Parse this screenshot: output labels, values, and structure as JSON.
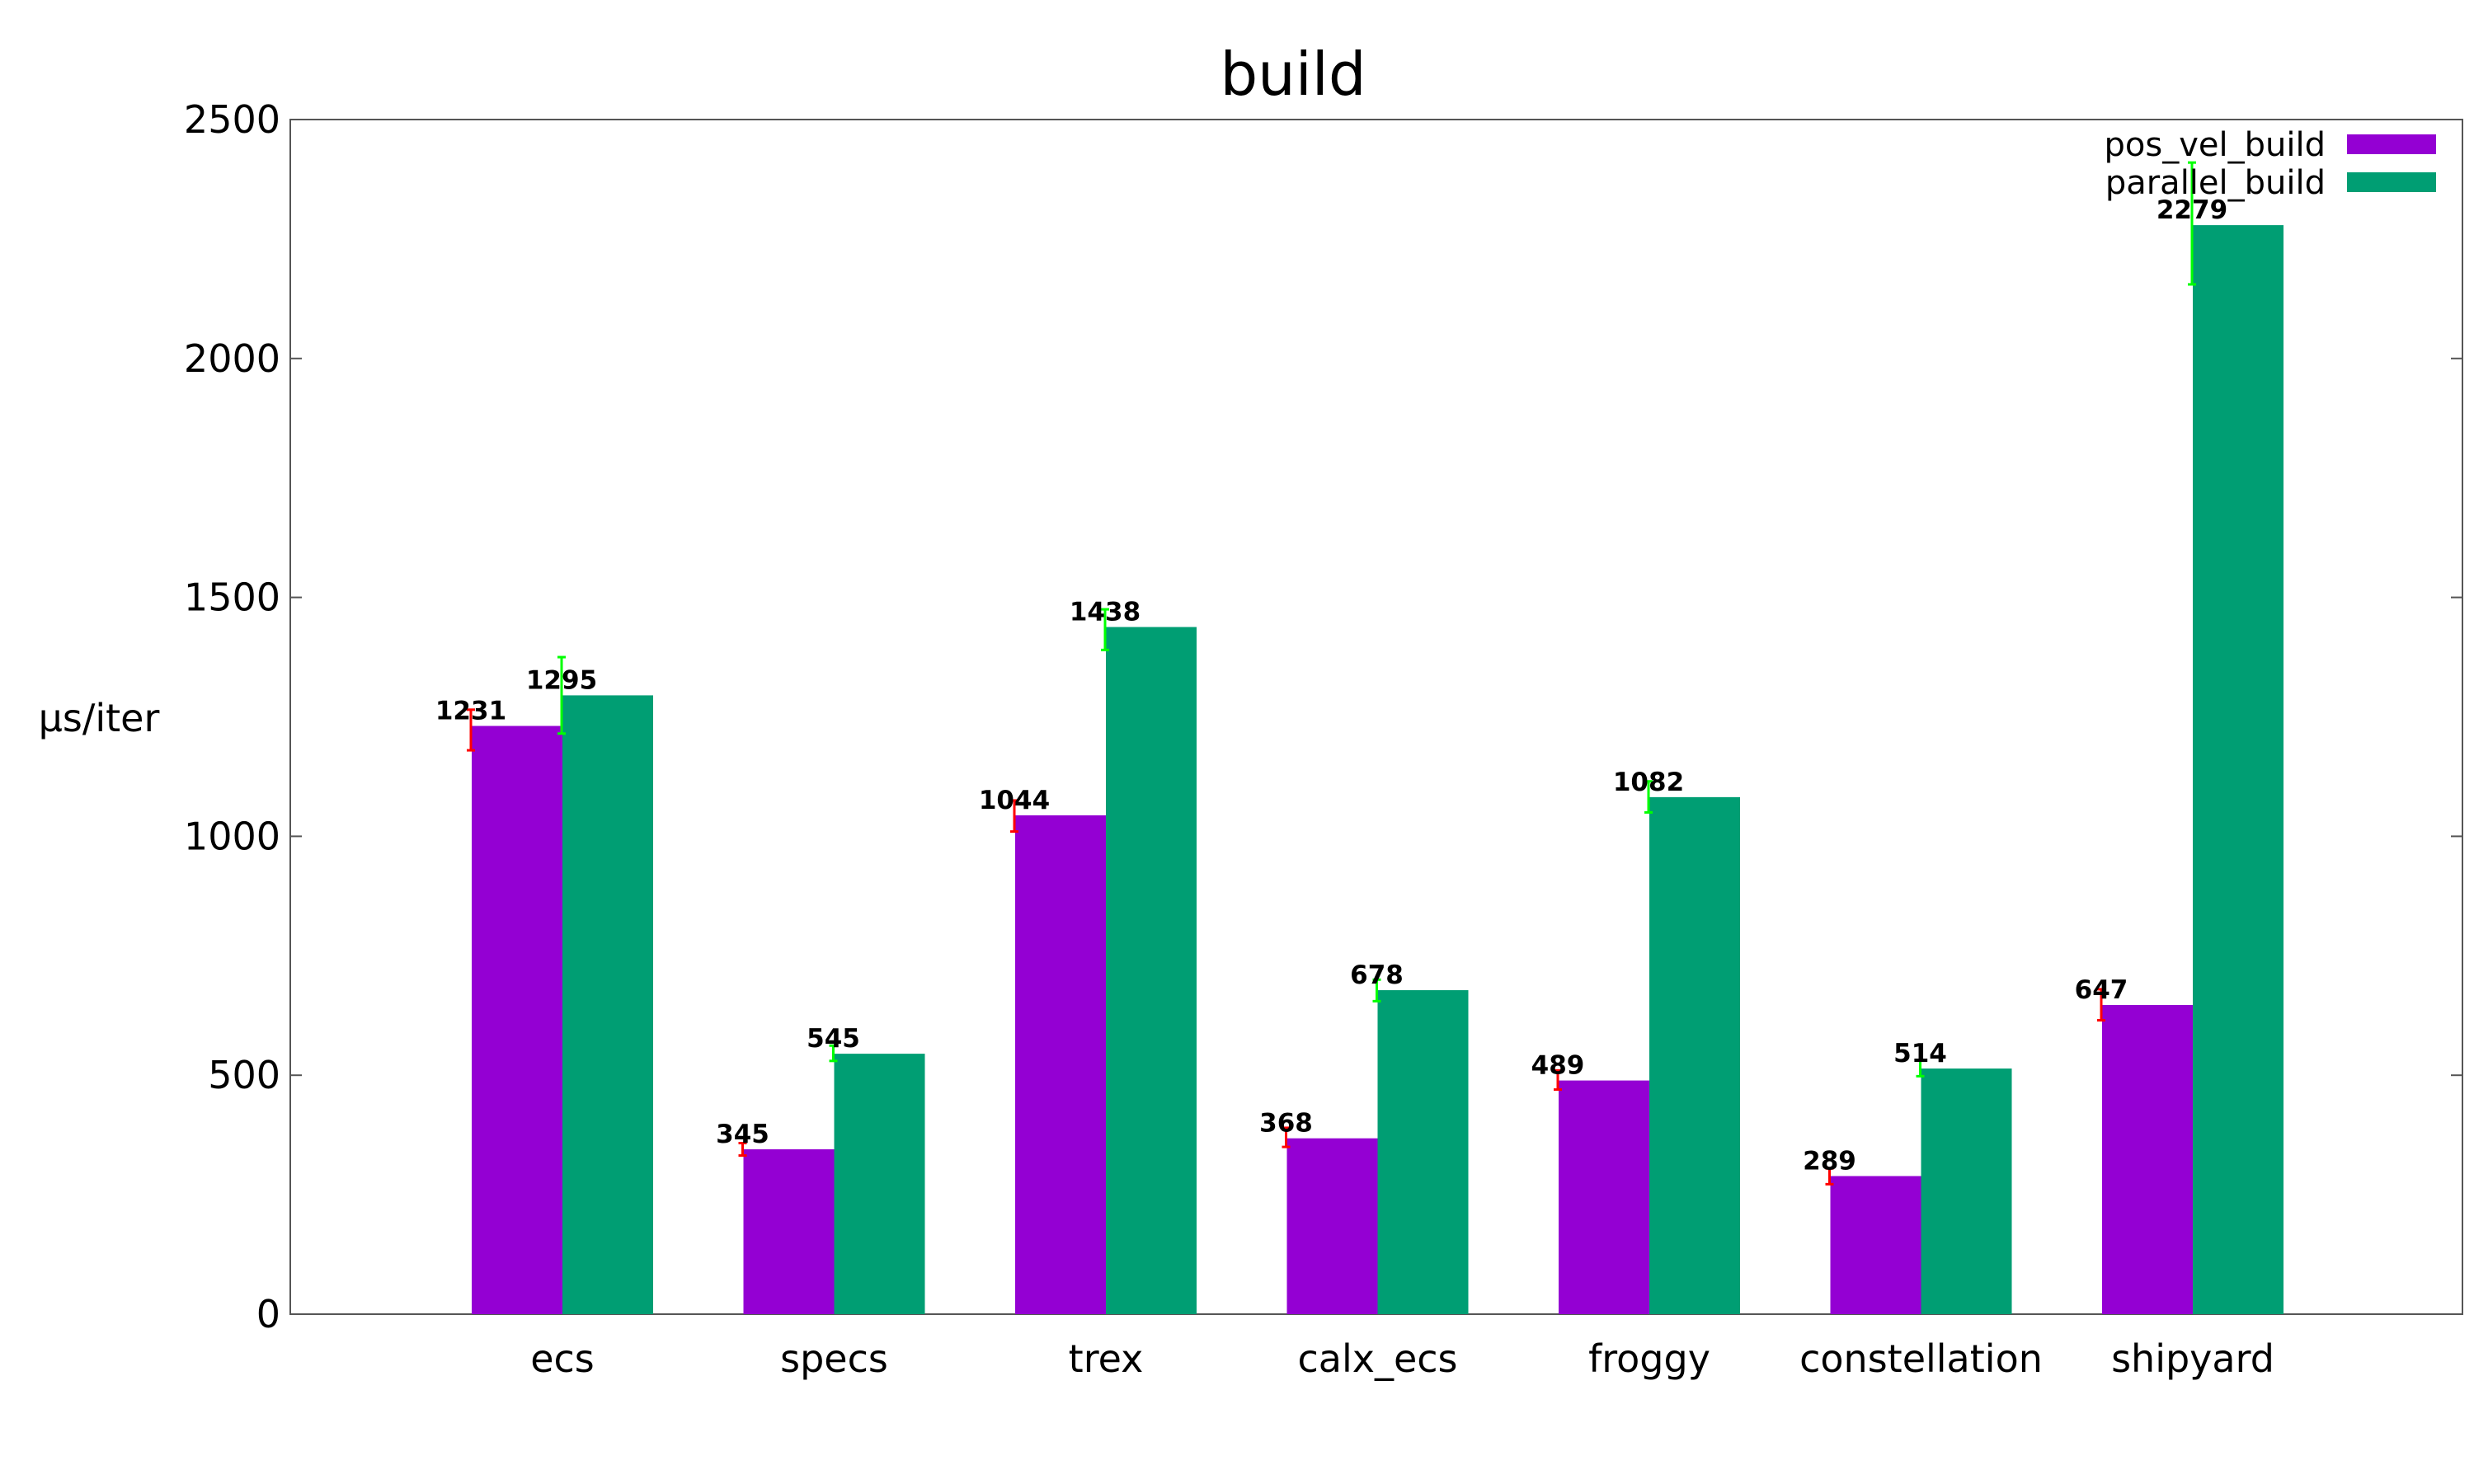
{
  "chart_data": {
    "type": "bar",
    "title": "build",
    "xlabel": "",
    "ylabel": "µs/iter",
    "ylim": [
      0,
      2500
    ],
    "yticks": [
      0,
      500,
      1000,
      1500,
      2000,
      2500
    ],
    "grid": false,
    "legend_position": "top-right",
    "categories": [
      "ecs",
      "specs",
      "trex",
      "calx_ecs",
      "froggy",
      "constellation",
      "shipyard"
    ],
    "series": [
      {
        "name": "pos_vel_build",
        "color": "#9400d3",
        "error_color": "#ff0000",
        "values": [
          1231,
          345,
          1044,
          368,
          489,
          289,
          647
        ],
        "errors": [
          [
            1180,
            1265
          ],
          [
            332,
            358
          ],
          [
            1010,
            1075
          ],
          [
            350,
            390
          ],
          [
            470,
            510
          ],
          [
            272,
            305
          ],
          [
            615,
            680
          ]
        ]
      },
      {
        "name": "parallel_build",
        "color": "#009e73",
        "error_color": "#00ff00",
        "values": [
          1295,
          545,
          1438,
          678,
          1082,
          514,
          2279
        ],
        "errors": [
          [
            1215,
            1375
          ],
          [
            530,
            562
          ],
          [
            1390,
            1475
          ],
          [
            655,
            700
          ],
          [
            1050,
            1115
          ],
          [
            498,
            532
          ],
          [
            2155,
            2410
          ]
        ]
      }
    ]
  }
}
